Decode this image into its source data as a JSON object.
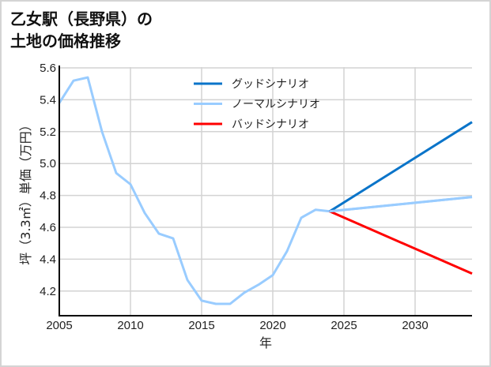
{
  "title": {
    "line1": "乙女駅（長野県）の",
    "line2": "土地の価格推移"
  },
  "legend": [
    {
      "label": "グッドシナリオ",
      "color": "#0a74c9"
    },
    {
      "label": "ノーマルシナリオ",
      "color": "#99ccff"
    },
    {
      "label": "バッドシナリオ",
      "color": "#ff0000"
    }
  ],
  "axes": {
    "xlabel": "年",
    "ylabel": "坪（3.3㎡）単価（万円）",
    "xticks": [
      "2005",
      "2010",
      "2015",
      "2020",
      "2025",
      "2030"
    ],
    "yticks": [
      "4.2",
      "4.4",
      "4.6",
      "4.8",
      "5.0",
      "5.2",
      "5.4",
      "5.6"
    ]
  },
  "chart_data": {
    "type": "line",
    "title": "乙女駅（長野県）の土地の価格推移",
    "xlabel": "年",
    "ylabel": "坪（3.3㎡）単価（万円）",
    "xlim": [
      2005,
      2034
    ],
    "ylim": [
      4.06,
      5.6
    ],
    "grid": true,
    "legend_position": "upper center",
    "series": [
      {
        "name": "ノーマルシナリオ",
        "color": "#99ccff",
        "x": [
          2005,
          2006,
          2007,
          2008,
          2009,
          2010,
          2011,
          2012,
          2013,
          2014,
          2015,
          2016,
          2017,
          2018,
          2019,
          2020,
          2021,
          2022,
          2023,
          2024,
          2034
        ],
        "values": [
          5.38,
          5.52,
          5.54,
          5.2,
          4.94,
          4.87,
          4.69,
          4.56,
          4.53,
          4.27,
          4.14,
          4.12,
          4.12,
          4.19,
          4.24,
          4.3,
          4.45,
          4.66,
          4.71,
          4.7,
          4.79
        ]
      },
      {
        "name": "グッドシナリオ",
        "color": "#0a74c9",
        "x": [
          2024,
          2034
        ],
        "values": [
          4.7,
          5.26
        ]
      },
      {
        "name": "バッドシナリオ",
        "color": "#ff0000",
        "x": [
          2024,
          2034
        ],
        "values": [
          4.7,
          4.31
        ]
      }
    ]
  }
}
